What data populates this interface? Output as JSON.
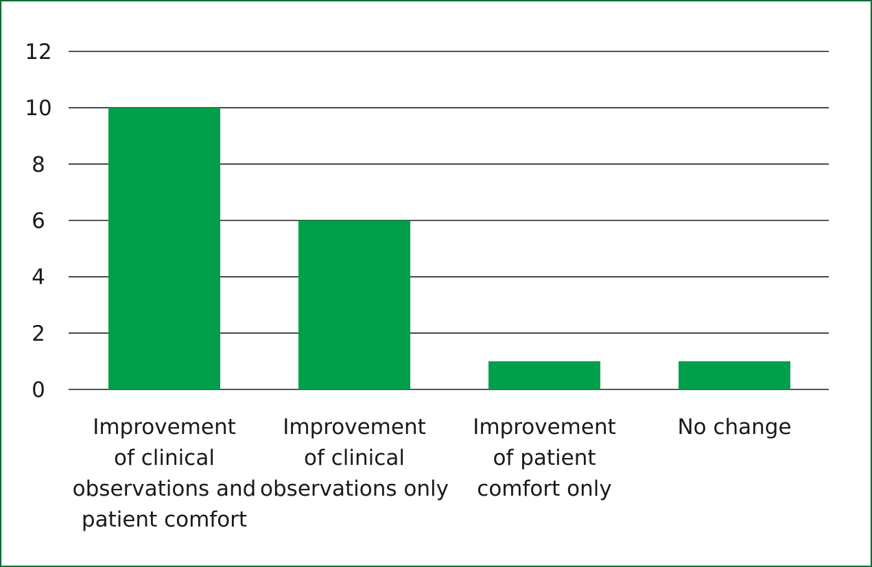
{
  "chart_data": {
    "type": "bar",
    "categories": [
      [
        "Improvement",
        "of clinical",
        "observations and",
        "patient comfort"
      ],
      [
        "Improvement",
        "of clinical",
        "observations only"
      ],
      [
        "Improvement",
        "of patient",
        "comfort only"
      ],
      [
        "No change"
      ]
    ],
    "values": [
      10,
      6,
      1,
      1
    ],
    "ylim": [
      0,
      12
    ],
    "yticks": [
      0,
      2,
      4,
      6,
      8,
      10,
      12
    ],
    "title": "",
    "xlabel": "",
    "ylabel": "",
    "grid": true,
    "legend": "none",
    "colors": {
      "bar": "#00a04b",
      "grid": "#1a1a1a",
      "frame": "#0f6b33"
    }
  }
}
